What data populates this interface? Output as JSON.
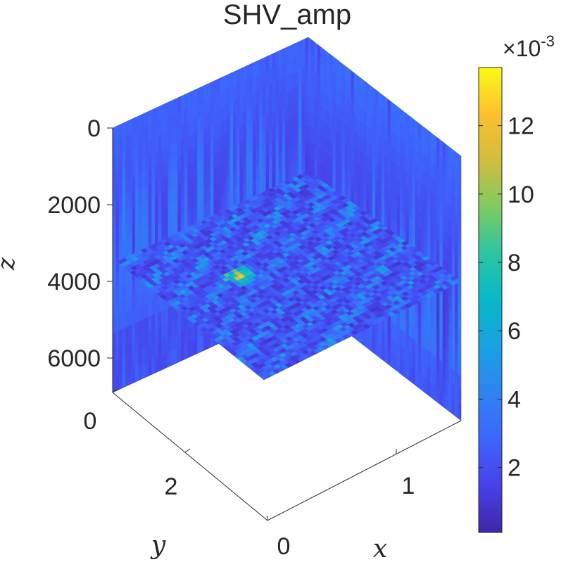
{
  "chart_data": {
    "type": "heatmap",
    "title": "SHV_amp",
    "xlabel": "x",
    "ylabel": "y",
    "zlabel": "z",
    "x_ticks": [
      "0",
      "1"
    ],
    "y_ticks": [
      "0",
      "2"
    ],
    "z_ticks": [
      "0",
      "2000",
      "4000",
      "6000"
    ],
    "z_direction": "reversed",
    "x_range": [
      0,
      1.5
    ],
    "y_range": [
      0,
      3
    ],
    "z_range": [
      0,
      7000
    ],
    "slices": [
      "x = 0 (back-left vertical plane)",
      "y = 0 (back-right vertical plane)",
      "z ≈ 3500 (horizontal plane)"
    ],
    "colorbar": {
      "colormap": "parula",
      "min": 0.0001,
      "max": 0.0137,
      "ticks": [
        "2",
        "4",
        "6",
        "8",
        "10",
        "12"
      ],
      "multiplier": "×10",
      "exponent": "-3"
    },
    "hotspot": {
      "x": 0.55,
      "y": 1.1,
      "z": 3500,
      "value": 0.013
    }
  }
}
